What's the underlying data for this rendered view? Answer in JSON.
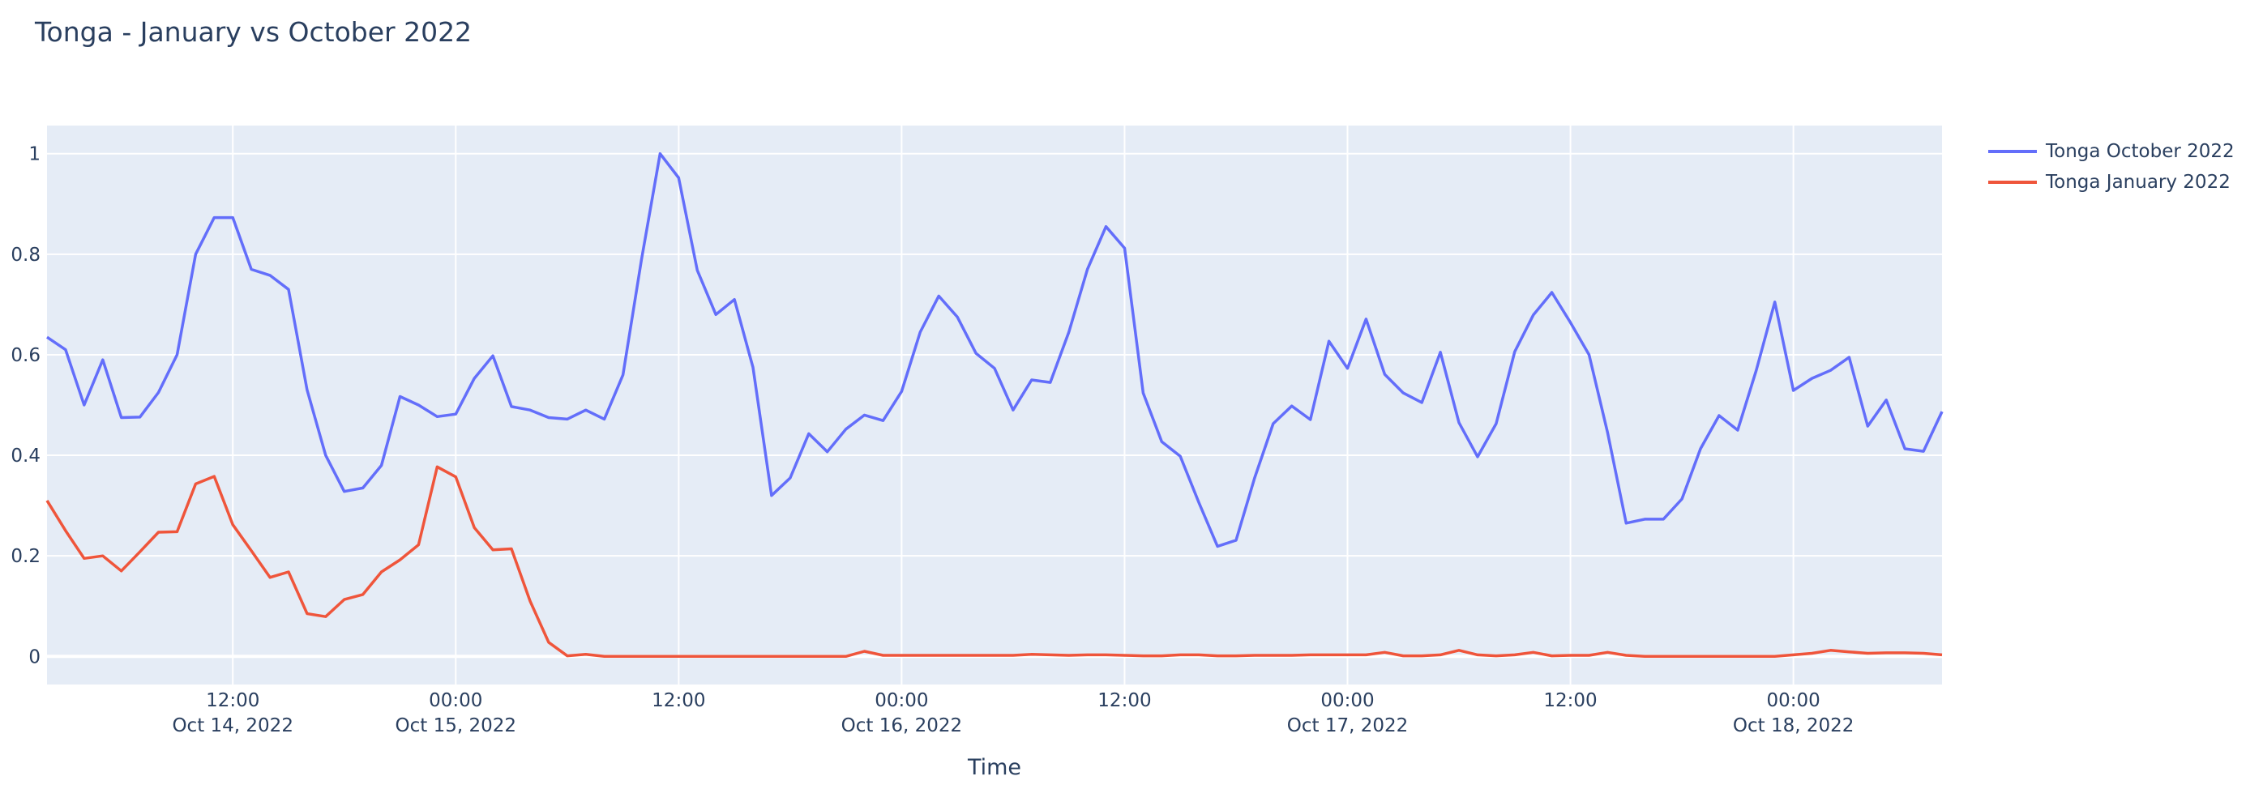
{
  "chart_data": {
    "type": "line",
    "title": "Tonga - January vs October 2022",
    "xlabel": "Time",
    "ylabel": "",
    "ylim": [
      -0.056,
      1.056
    ],
    "grid": true,
    "legend_position": "top-right",
    "y_ticks": [
      "0",
      "0.2",
      "0.4",
      "0.6",
      "0.8",
      "1"
    ],
    "x_ticks": [
      {
        "at": "2022-10-14 12:00",
        "line1": "12:00",
        "line2": "Oct 14, 2022"
      },
      {
        "at": "2022-10-15 00:00",
        "line1": "00:00",
        "line2": "Oct 15, 2022"
      },
      {
        "at": "2022-10-15 12:00",
        "line1": "12:00",
        "line2": ""
      },
      {
        "at": "2022-10-16 00:00",
        "line1": "00:00",
        "line2": "Oct 16, 2022"
      },
      {
        "at": "2022-10-16 12:00",
        "line1": "12:00",
        "line2": ""
      },
      {
        "at": "2022-10-17 00:00",
        "line1": "00:00",
        "line2": "Oct 17, 2022"
      },
      {
        "at": "2022-10-17 12:00",
        "line1": "12:00",
        "line2": ""
      },
      {
        "at": "2022-10-18 00:00",
        "line1": "00:00",
        "line2": "Oct 18, 2022"
      }
    ],
    "xlim": [
      "2022-10-14 02:00",
      "2022-10-18 08:00"
    ],
    "x": [
      "2022-10-14 02:00",
      "2022-10-14 03:00",
      "2022-10-14 04:00",
      "2022-10-14 05:00",
      "2022-10-14 06:00",
      "2022-10-14 07:00",
      "2022-10-14 08:00",
      "2022-10-14 09:00",
      "2022-10-14 10:00",
      "2022-10-14 11:00",
      "2022-10-14 12:00",
      "2022-10-14 13:00",
      "2022-10-14 14:00",
      "2022-10-14 15:00",
      "2022-10-14 16:00",
      "2022-10-14 17:00",
      "2022-10-14 18:00",
      "2022-10-14 19:00",
      "2022-10-14 20:00",
      "2022-10-14 21:00",
      "2022-10-14 22:00",
      "2022-10-14 23:00",
      "2022-10-15 00:00",
      "2022-10-15 01:00",
      "2022-10-15 02:00",
      "2022-10-15 03:00",
      "2022-10-15 04:00",
      "2022-10-15 05:00",
      "2022-10-15 06:00",
      "2022-10-15 07:00",
      "2022-10-15 08:00",
      "2022-10-15 09:00",
      "2022-10-15 10:00",
      "2022-10-15 11:00",
      "2022-10-15 12:00",
      "2022-10-15 13:00",
      "2022-10-15 14:00",
      "2022-10-15 15:00",
      "2022-10-15 16:00",
      "2022-10-15 17:00",
      "2022-10-15 18:00",
      "2022-10-15 19:00",
      "2022-10-15 20:00",
      "2022-10-15 21:00",
      "2022-10-15 22:00",
      "2022-10-15 23:00",
      "2022-10-16 00:00",
      "2022-10-16 01:00",
      "2022-10-16 02:00",
      "2022-10-16 03:00",
      "2022-10-16 04:00",
      "2022-10-16 05:00",
      "2022-10-16 06:00",
      "2022-10-16 07:00",
      "2022-10-16 08:00",
      "2022-10-16 09:00",
      "2022-10-16 10:00",
      "2022-10-16 11:00",
      "2022-10-16 12:00",
      "2022-10-16 13:00",
      "2022-10-16 14:00",
      "2022-10-16 15:00",
      "2022-10-16 16:00",
      "2022-10-16 17:00",
      "2022-10-16 18:00",
      "2022-10-16 19:00",
      "2022-10-16 20:00",
      "2022-10-16 21:00",
      "2022-10-16 22:00",
      "2022-10-16 23:00",
      "2022-10-17 00:00",
      "2022-10-17 01:00",
      "2022-10-17 02:00",
      "2022-10-17 03:00",
      "2022-10-17 04:00",
      "2022-10-17 05:00",
      "2022-10-17 06:00",
      "2022-10-17 07:00",
      "2022-10-17 08:00",
      "2022-10-17 09:00",
      "2022-10-17 10:00",
      "2022-10-17 11:00",
      "2022-10-17 12:00",
      "2022-10-17 13:00",
      "2022-10-17 14:00",
      "2022-10-17 15:00",
      "2022-10-17 16:00",
      "2022-10-17 17:00",
      "2022-10-17 18:00",
      "2022-10-17 19:00",
      "2022-10-17 20:00",
      "2022-10-17 21:00",
      "2022-10-17 22:00",
      "2022-10-17 23:00",
      "2022-10-18 00:00",
      "2022-10-18 01:00",
      "2022-10-18 02:00",
      "2022-10-18 03:00",
      "2022-10-18 04:00",
      "2022-10-18 05:00",
      "2022-10-18 06:00",
      "2022-10-18 07:00",
      "2022-10-18 08:00"
    ],
    "series": [
      {
        "name": "Tonga October 2022",
        "color": "#636efa",
        "values": [
          0.635,
          0.61,
          0.5,
          0.59,
          0.475,
          0.476,
          0.525,
          0.6,
          0.8,
          0.873,
          0.873,
          0.77,
          0.758,
          0.73,
          0.53,
          0.4,
          0.328,
          0.335,
          0.38,
          0.517,
          0.5,
          0.477,
          0.482,
          0.553,
          0.598,
          0.497,
          0.49,
          0.475,
          0.472,
          0.49,
          0.472,
          0.56,
          0.79,
          1.0,
          0.952,
          0.768,
          0.68,
          0.71,
          0.575,
          0.32,
          0.355,
          0.443,
          0.407,
          0.452,
          0.48,
          0.469,
          0.527,
          0.645,
          0.717,
          0.675,
          0.603,
          0.573,
          0.49,
          0.55,
          0.545,
          0.645,
          0.77,
          0.855,
          0.812,
          0.524,
          0.427,
          0.398,
          0.306,
          0.219,
          0.231,
          0.355,
          0.463,
          0.498,
          0.471,
          0.627,
          0.573,
          0.671,
          0.561,
          0.524,
          0.505,
          0.605,
          0.465,
          0.397,
          0.463,
          0.606,
          0.679,
          0.724,
          0.664,
          0.6,
          0.445,
          0.265,
          0.273,
          0.273,
          0.313,
          0.413,
          0.479,
          0.45,
          0.569,
          0.705,
          0.529,
          0.553,
          0.569,
          0.595,
          0.458,
          0.51,
          0.413,
          0.408,
          0.487
        ]
      },
      {
        "name": "Tonga January 2022",
        "color": "#ef553b",
        "values": [
          0.31,
          0.25,
          0.195,
          0.2,
          0.17,
          0.208,
          0.247,
          0.248,
          0.343,
          0.358,
          0.262,
          0.21,
          0.157,
          0.168,
          0.085,
          0.079,
          0.113,
          0.123,
          0.168,
          0.192,
          0.222,
          0.377,
          0.357,
          0.256,
          0.212,
          0.214,
          0.11,
          0.028,
          0.001,
          0.004,
          0,
          0,
          0,
          0,
          0,
          0,
          0,
          0,
          0,
          0,
          0,
          0,
          0,
          0,
          0.01,
          0.002,
          0.002,
          0.002,
          0.002,
          0.002,
          0.002,
          0.002,
          0.002,
          0.004,
          0.003,
          0.002,
          0.003,
          0.003,
          0.002,
          0.001,
          0.001,
          0.003,
          0.003,
          0.001,
          0.001,
          0.002,
          0.002,
          0.002,
          0.003,
          0.003,
          0.003,
          0.003,
          0.008,
          0.001,
          0.001,
          0.003,
          0.012,
          0.003,
          0.001,
          0.003,
          0.008,
          0.001,
          0.002,
          0.002,
          0.008,
          0.002,
          0,
          0,
          0,
          0,
          0,
          0,
          0,
          0,
          0.003,
          0.006,
          0.012,
          0.009,
          0.006,
          0.007,
          0.007,
          0.006,
          0.003
        ]
      }
    ]
  }
}
